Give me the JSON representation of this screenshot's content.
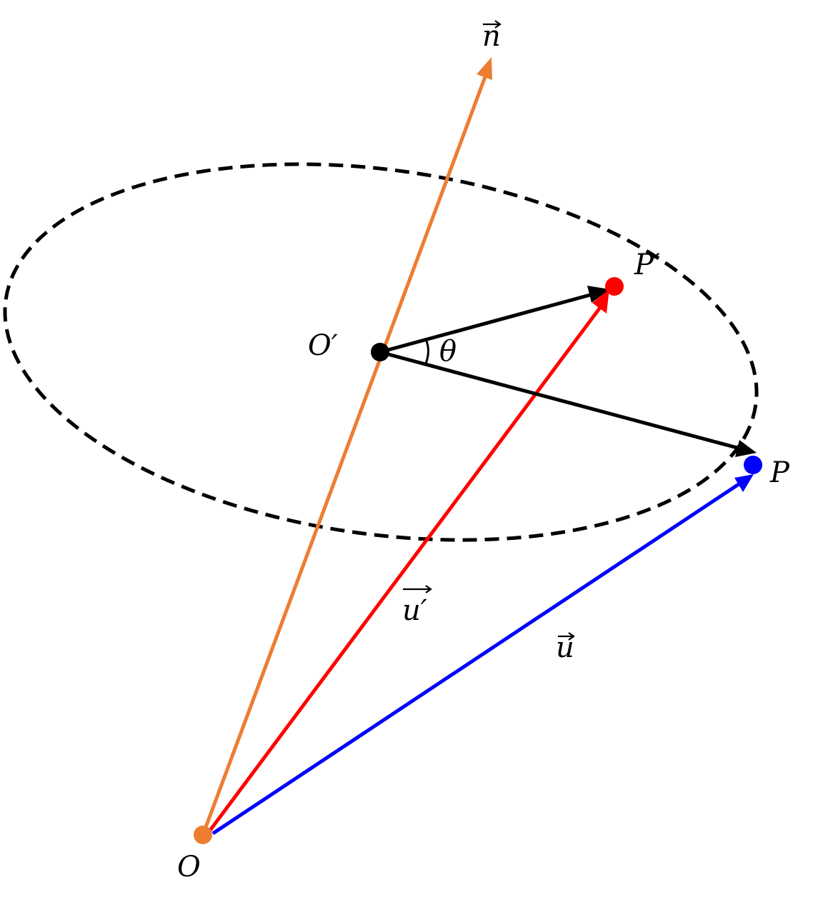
{
  "labels": {
    "origin": "O",
    "center": "O′",
    "point": "P",
    "point_rotated": "P′",
    "normal": "n",
    "vector_u": "u",
    "vector_u_rotated": "u′",
    "angle": "θ"
  },
  "colors": {
    "normal_axis": "#ed7d31",
    "vector_u_rotated": "#ff0000",
    "vector_u": "#0000ff",
    "radius": "#000000",
    "circle": "#000000",
    "background": "#ffffff"
  }
}
